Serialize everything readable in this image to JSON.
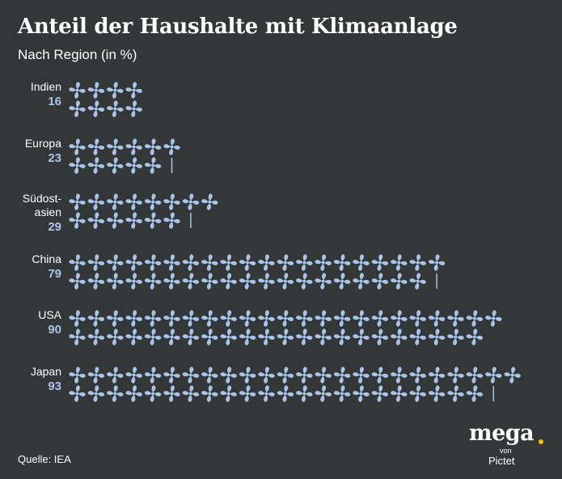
{
  "chart_data": {
    "type": "pictogram-bar",
    "title": "Anteil der Haushalte mit Klimaanlage",
    "subtitle": "Nach Region (in %)",
    "unit": "%",
    "icon": "fan-icon",
    "categories": [
      {
        "label": [
          "Indien"
        ],
        "value": 16
      },
      {
        "label": [
          "Europa"
        ],
        "value": 23
      },
      {
        "label": [
          "Südost-",
          "asien"
        ],
        "value": 29
      },
      {
        "label": [
          "China"
        ],
        "value": 79
      },
      {
        "label": [
          "USA"
        ],
        "value": 90
      },
      {
        "label": [
          "Japan"
        ],
        "value": 93
      }
    ],
    "values_display": [
      "16",
      "23",
      "29",
      "79",
      "90",
      "93"
    ]
  },
  "source": "Quelle: IEA",
  "logo": {
    "word": "mega",
    "von": "von",
    "pictet": "Pictet"
  },
  "colors": {
    "background": "#333738",
    "icon": "#a9c4e8",
    "value": "#a9c4e8",
    "text": "#ffffff",
    "logo_dot": "#f2c200"
  }
}
